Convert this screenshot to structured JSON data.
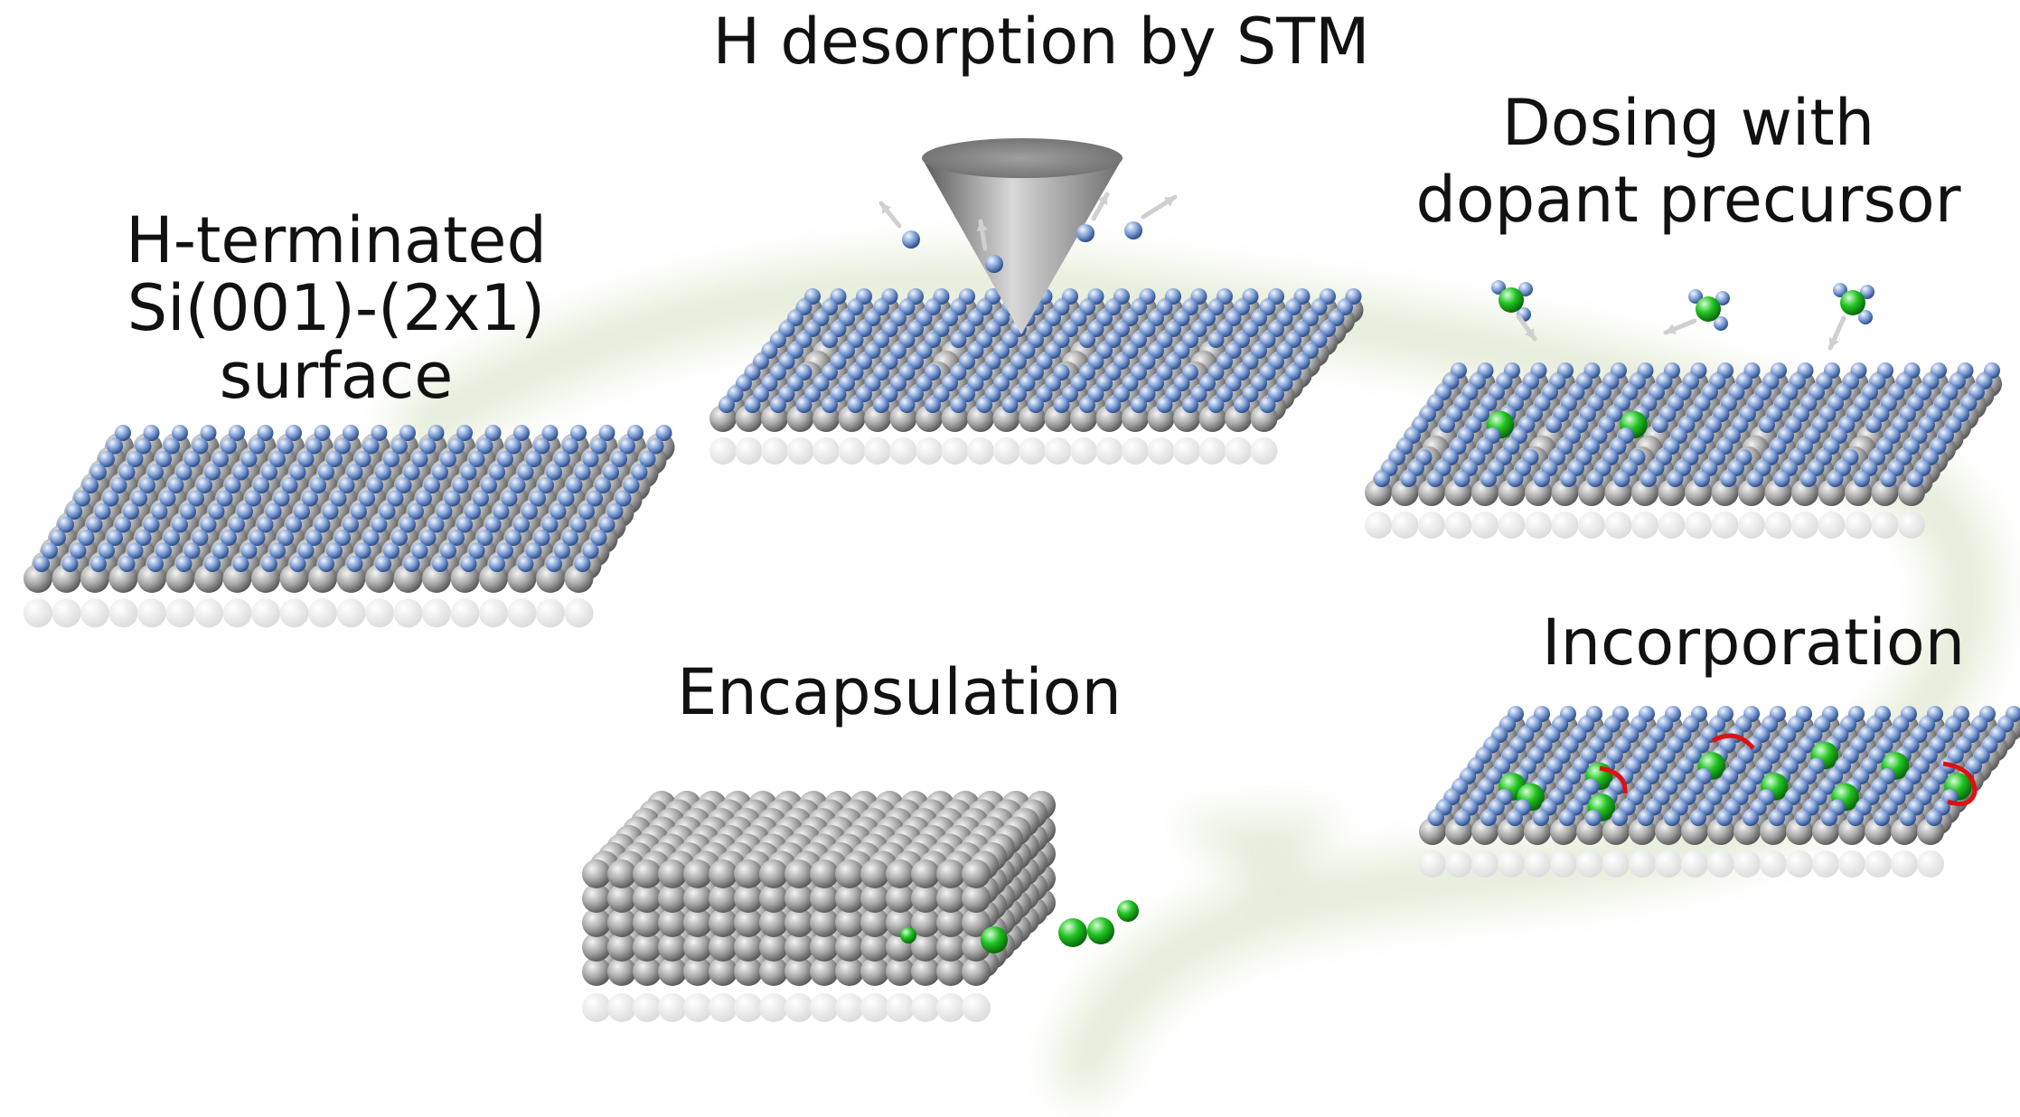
{
  "colors": {
    "background": "#ffffff",
    "silicon": "#a6a6a6",
    "hydrogen": "#7f9fd6",
    "dopant": "#22c322",
    "bond": "#e01010",
    "cycle_arrow": "#e4ecd8",
    "tip": "#8a8a8a"
  },
  "labels": {
    "h_terminated_line1": "H-terminated",
    "h_terminated_line2": "Si(001)-(2x1)",
    "h_terminated_line3": "surface",
    "h_desorption": "H desorption by STM",
    "dosing_line1": "Dosing with",
    "dosing_line2": "dopant precursor",
    "incorporation": "Incorporation",
    "encapsulation": "Encapsulation"
  }
}
